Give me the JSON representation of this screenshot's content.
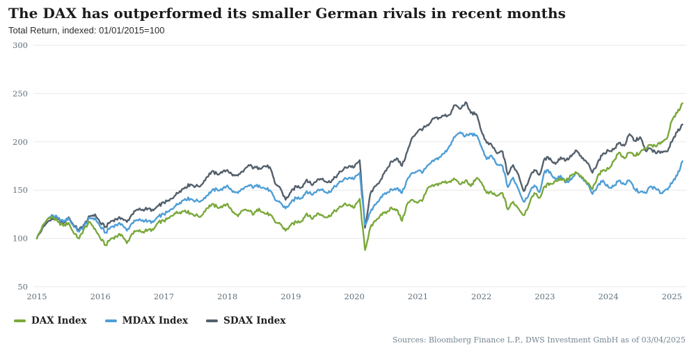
{
  "header": {
    "title": "The DAX has outperformed its smaller German rivals in recent months",
    "subtitle": "Total Return, indexed: 01/01/2015=100"
  },
  "footer": {
    "source": "Sources: Bloomberg Finance L.P., DWS Investment GmbH as of 03/04/2025"
  },
  "chart_data": {
    "type": "line",
    "title": "The DAX has outperformed its smaller German rivals in recent months",
    "subtitle": "Total Return, indexed: 01/01/2015=100",
    "x_unit": "monthly",
    "x_start": "2015-01",
    "x_end": "2025-03",
    "x_tick_labels": [
      "2015",
      "2016",
      "2017",
      "2018",
      "2019",
      "2020",
      "2021",
      "2022",
      "2023",
      "2024",
      "2025"
    ],
    "y_ticks": [
      50,
      100,
      150,
      200,
      250,
      300
    ],
    "ylim": [
      50,
      300
    ],
    "grid": "horizontal-only",
    "legend_position": "bottom-left",
    "axis_label_color": "#60707c",
    "gridline_color": "#e9e9ea",
    "series": [
      {
        "name": "DAX Index",
        "color": "#7aa83a",
        "values": [
          100,
          112,
          120,
          122,
          117,
          113,
          116,
          105,
          100,
          111,
          117,
          110,
          100,
          93,
          100,
          102,
          104,
          95,
          105,
          108,
          107,
          109,
          109,
          117,
          118,
          121,
          126,
          127,
          129,
          126,
          124,
          123,
          131,
          135,
          133,
          132,
          136,
          127,
          123,
          129,
          129,
          125,
          131,
          126,
          125,
          117,
          115,
          108,
          114,
          117,
          118,
          126,
          120,
          126,
          124,
          122,
          127,
          131,
          135,
          135,
          132,
          141,
          88,
          111,
          118,
          125,
          126,
          132,
          130,
          118,
          136,
          140,
          137,
          141,
          153,
          154,
          157,
          158,
          159,
          161,
          156,
          160,
          154,
          162,
          158,
          147,
          147,
          144,
          147,
          130,
          138,
          131,
          124,
          135,
          147,
          142,
          154,
          157,
          159,
          162,
          160,
          165,
          168,
          163,
          157,
          151,
          165,
          171,
          172,
          180,
          189,
          183,
          189,
          186,
          189,
          193,
          197,
          195,
          200,
          203,
          222,
          230,
          240
        ]
      },
      {
        "name": "MDAX Index",
        "color": "#4f9ed6",
        "values": [
          100,
          112,
          120,
          124,
          121,
          117,
          121,
          112,
          107,
          114,
          121,
          121,
          112,
          106,
          112,
          114,
          115,
          108,
          116,
          119,
          119,
          118,
          117,
          123,
          125,
          128,
          133,
          137,
          141,
          141,
          139,
          139,
          144,
          149,
          151,
          150,
          155,
          148,
          147,
          151,
          155,
          153,
          155,
          152,
          150,
          140,
          137,
          131,
          137,
          142,
          142,
          149,
          145,
          150,
          151,
          147,
          152,
          157,
          161,
          163,
          162,
          168,
          114,
          127,
          135,
          143,
          146,
          151,
          152,
          147,
          161,
          168,
          170,
          169,
          176,
          180,
          184,
          188,
          196,
          205,
          210,
          206,
          208,
          207,
          195,
          182,
          185,
          176,
          175,
          153,
          163,
          151,
          138,
          146,
          155,
          148,
          170,
          169,
          161,
          165,
          158,
          161,
          168,
          162,
          156,
          146,
          155,
          160,
          153,
          154,
          160,
          156,
          160,
          151,
          148,
          147,
          154,
          151,
          147,
          151,
          157,
          165,
          180
        ]
      },
      {
        "name": "SDAX Index",
        "color": "#535f6b",
        "values": [
          100,
          110,
          117,
          120,
          120,
          115,
          122,
          113,
          109,
          115,
          123,
          125,
          116,
          112,
          118,
          120,
          121,
          117,
          125,
          130,
          130,
          131,
          129,
          134,
          137,
          139,
          144,
          149,
          153,
          156,
          154,
          155,
          163,
          169,
          167,
          168,
          171,
          165,
          165,
          169,
          176,
          173,
          173,
          175,
          174,
          157,
          152,
          140,
          148,
          154,
          153,
          161,
          155,
          161,
          162,
          158,
          161,
          167,
          172,
          175,
          174,
          181,
          111,
          146,
          154,
          161,
          170,
          180,
          183,
          175,
          190,
          205,
          211,
          214,
          217,
          224,
          225,
          227,
          228,
          238,
          234,
          241,
          230,
          229,
          211,
          199,
          196,
          188,
          190,
          166,
          176,
          166,
          149,
          161,
          171,
          166,
          183,
          183,
          177,
          184,
          181,
          185,
          191,
          183,
          178,
          168,
          179,
          188,
          191,
          192,
          199,
          196,
          208,
          201,
          205,
          191,
          193,
          188,
          190,
          190,
          200,
          210,
          218
        ]
      }
    ]
  }
}
